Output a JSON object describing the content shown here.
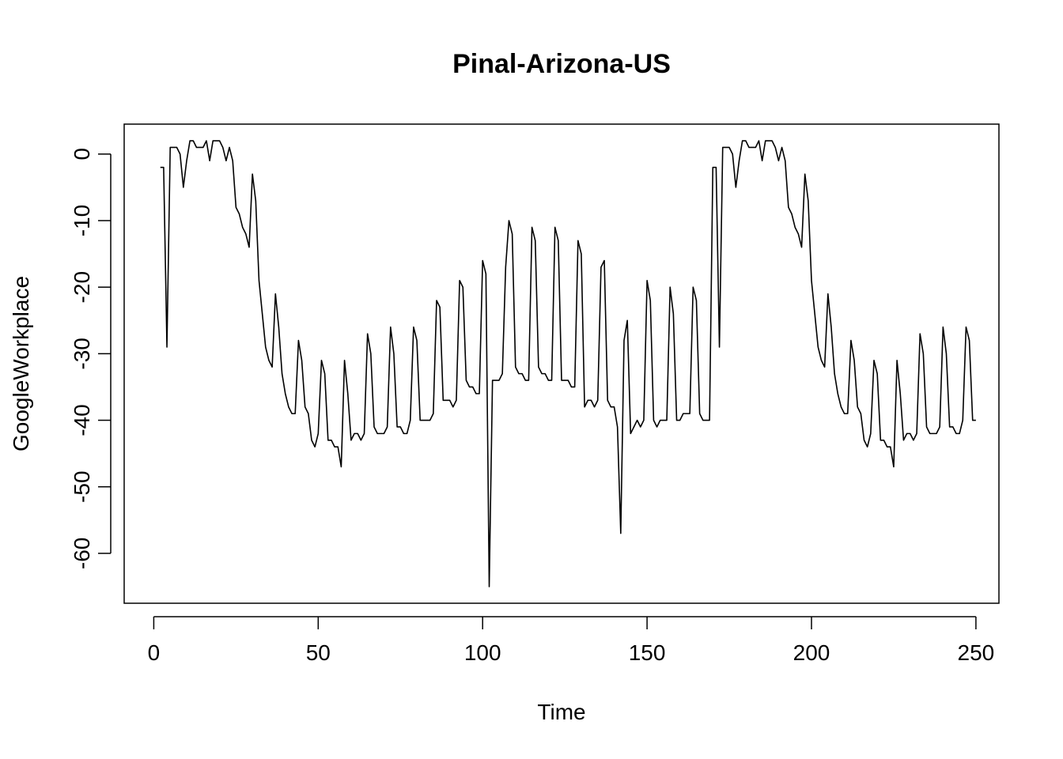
{
  "chart_data": {
    "type": "line",
    "title": "Pinal-Arizona-US",
    "xlabel": "Time",
    "ylabel": "GoogleWorkplace",
    "xlim": [
      -9,
      257
    ],
    "ylim": [
      -67.5,
      4.5
    ],
    "xticks": [
      0,
      50,
      100,
      150,
      200,
      250
    ],
    "yticks": [
      0,
      -10,
      -20,
      -30,
      -40,
      -50,
      -60
    ],
    "grid": false,
    "legend": "none",
    "line_color": "#000000",
    "series": [
      {
        "values": [
          -2,
          -2,
          -29,
          1,
          1,
          1,
          0,
          -5,
          -1,
          2,
          2,
          1,
          1,
          1,
          2,
          -1,
          2,
          2,
          2,
          1,
          -1,
          1,
          -1,
          -8,
          -9,
          -11,
          -12,
          -14,
          -3,
          -7,
          -19,
          -24,
          -29,
          -31,
          -32,
          -21,
          -26,
          -33,
          -36,
          -38,
          -39,
          -39,
          -28,
          -31,
          -38,
          -39,
          -43,
          -44,
          -42,
          -31,
          -33,
          -43,
          -43,
          -44,
          -44,
          -47,
          -31,
          -36,
          -43,
          -42,
          -42,
          -43,
          -42,
          -27,
          -30,
          -41,
          -42,
          -42,
          -42,
          -41,
          -26,
          -30,
          -41,
          -41,
          -42,
          -42,
          -40,
          -26,
          -28,
          -40,
          -40,
          -40,
          -40,
          -39,
          -22,
          -23,
          -37,
          -37,
          -37,
          -38,
          -37,
          -19,
          -20,
          -34,
          -35,
          -35,
          -36,
          -36,
          -16,
          -18,
          -65,
          -34,
          -34,
          -34,
          -33,
          -17,
          -10,
          -12,
          -32,
          -33,
          -33,
          -34,
          -34,
          -11,
          -13,
          -32,
          -33,
          -33,
          -34,
          -34,
          -11,
          -13,
          -34,
          -34,
          -34,
          -35,
          -35,
          -13,
          -15,
          -38,
          -37,
          -37,
          -38,
          -37,
          -17,
          -16,
          -37,
          -38,
          -38,
          -41,
          -57,
          -28,
          -25,
          -42,
          -41,
          -40,
          -41,
          -40,
          -19,
          -22,
          -40,
          -41,
          -40,
          -40,
          -40,
          -20,
          -24,
          -40,
          -40,
          -39,
          -39,
          -39,
          -20,
          -22,
          -39,
          -40,
          -40,
          -40,
          -2,
          -2,
          -29,
          1,
          1,
          1,
          0,
          -5,
          -1,
          2,
          2,
          1,
          1,
          1,
          2,
          -1,
          2,
          2,
          2,
          1,
          -1,
          1,
          -1,
          -8,
          -9,
          -11,
          -12,
          -14,
          -3,
          -7,
          -19,
          -24,
          -29,
          -31,
          -32,
          -21,
          -26,
          -33,
          -36,
          -38,
          -39,
          -39,
          -28,
          -31,
          -38,
          -39,
          -43,
          -44,
          -42,
          -31,
          -33,
          -43,
          -43,
          -44,
          -44,
          -47,
          -31,
          -36,
          -43,
          -42,
          -42,
          -43,
          -42,
          -27,
          -30,
          -41,
          -42,
          -42,
          -42,
          -41,
          -26,
          -30,
          -41,
          -41,
          -42,
          -42,
          -40,
          -26,
          -28,
          -40,
          -40
        ]
      }
    ]
  }
}
